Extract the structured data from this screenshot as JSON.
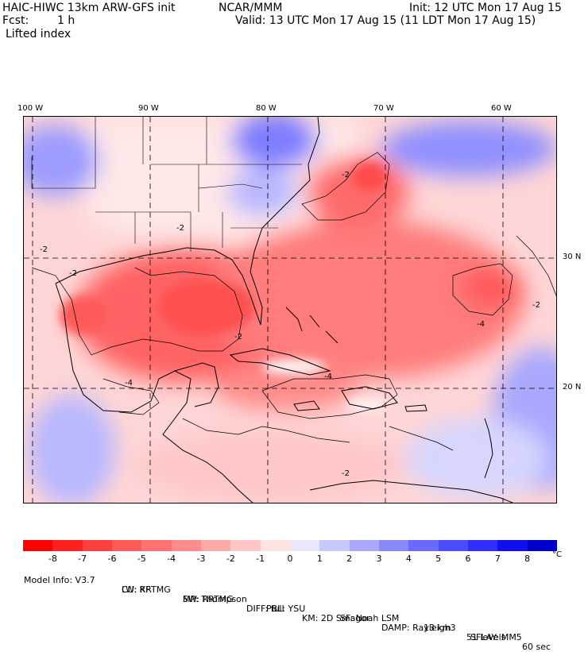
{
  "header": {
    "model": "HAIC-HIWC 13km ARW-GFS init",
    "org": "NCAR/MMM",
    "init": "Init: 12 UTC Mon 17 Aug 15",
    "fcst_label": "Fcst:",
    "fcst_value": "1 h",
    "valid": "Valid: 13 UTC Mon 17 Aug 15 (11 LDT Mon 17 Aug 15)",
    "field": "Lifted index"
  },
  "axes": {
    "lon_labels": [
      "100 W",
      "90 W",
      "80 W",
      "70 W",
      "60 W"
    ],
    "lat_labels": [
      "30 N",
      "20 N"
    ]
  },
  "contour_labels": [
    "-2",
    "-2",
    "-2",
    "-2",
    "-4",
    "-4",
    "-4",
    "-2",
    "-2",
    "-2"
  ],
  "legend": {
    "ticks": [
      "-8",
      "-7",
      "-6",
      "-5",
      "-4",
      "-3",
      "-2",
      "-1",
      "0",
      "1",
      "2",
      "3",
      "4",
      "5",
      "6",
      "7",
      "8"
    ],
    "unit": "°C",
    "colors": [
      "#ff0000",
      "#ff2020",
      "#ff4040",
      "#ff5a5a",
      "#ff7272",
      "#ff8c8c",
      "#ffa8a8",
      "#ffc6c6",
      "#ffe4e4",
      "#e8e8ff",
      "#c8c8ff",
      "#a8a8ff",
      "#8888ff",
      "#6a6aff",
      "#4c4cff",
      "#2e2eff",
      "#1010ee",
      "#0000cc"
    ]
  },
  "footer": {
    "line1": [
      {
        "k": "Model Info: V3.7"
      },
      {
        "k": "CU: KF"
      },
      {
        "k": "MP: Thompson"
      },
      {
        "k": "PBL: YSU"
      },
      {
        "k": "SF: Noah LSM"
      },
      {
        "k": "13 km"
      },
      {
        "k": "51 levels"
      },
      {
        "k": "60 sec"
      }
    ],
    "line2": [
      {
        "k": "LW: RRTMG"
      },
      {
        "k": "SW: RRTMG"
      },
      {
        "k": "DIFF: full"
      },
      {
        "k": "KM: 2D Smagor"
      },
      {
        "k": "DAMP: Rayleigh3"
      },
      {
        "k": "SFLAY: MM5"
      }
    ]
  }
}
